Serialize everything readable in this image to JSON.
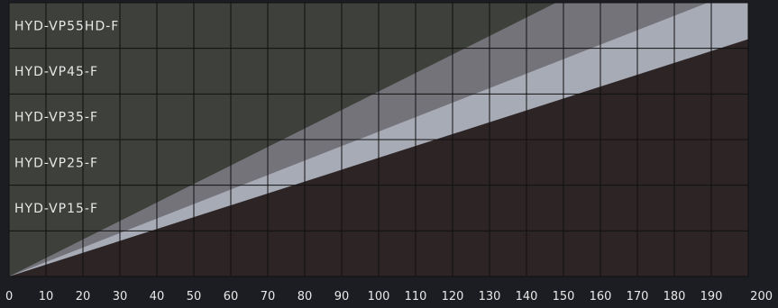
{
  "chart_data": {
    "type": "area",
    "x_ticks": [
      "0",
      "10",
      "20",
      "30",
      "40",
      "50",
      "60",
      "70",
      "80",
      "90",
      "100",
      "110",
      "120",
      "130",
      "140",
      "150",
      "160",
      "170",
      "180",
      "190",
      "200"
    ],
    "xlim": [
      0,
      200
    ],
    "rows": [
      "HYD-VP55HD-F",
      "HYD-VP45-F",
      "HYD-VP35-F",
      "HYD-VP25-F",
      "HYD-VP15-F",
      ""
    ],
    "grid": true,
    "bands": [
      {
        "x": [
          0,
          148
        ],
        "y": [
          0,
          6
        ]
      },
      {
        "x": [
          0,
          189
        ],
        "y": [
          0,
          6
        ]
      },
      {
        "x": [
          0,
          200
        ],
        "y": [
          0,
          5.2
        ]
      }
    ],
    "colors": {
      "background": "#1c1d22",
      "area_top": "#3d403b",
      "band_1": "#75737a",
      "band_2": "#a7abb6",
      "area_bottom": "#2c2425",
      "grid": "#111111",
      "text": "#e8e8e8"
    }
  }
}
